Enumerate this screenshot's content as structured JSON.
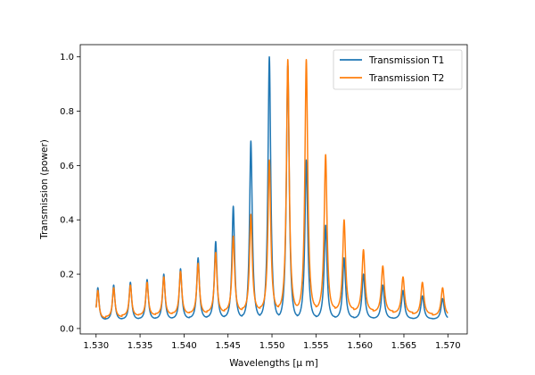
{
  "chart_data": {
    "type": "line",
    "title": "",
    "xlabel": "Wavelengths [$\\mu$ m]",
    "xlabel_display": "Wavelengths [μ m]",
    "ylabel": "Transmission (power)",
    "xlim": [
      1.5282,
      1.5722
    ],
    "ylim": [
      -0.02,
      1.045
    ],
    "xticks": [
      1.53,
      1.535,
      1.54,
      1.545,
      1.55,
      1.555,
      1.56,
      1.565,
      1.57
    ],
    "xtick_labels": [
      "1.530",
      "1.535",
      "1.540",
      "1.545",
      "1.550",
      "1.555",
      "1.560",
      "1.565",
      "1.570"
    ],
    "yticks": [
      0.0,
      0.2,
      0.4,
      0.6,
      0.8,
      1.0
    ],
    "ytick_labels": [
      "0.0",
      "0.2",
      "0.4",
      "0.6",
      "0.8",
      "1.0"
    ],
    "grid": false,
    "legend_position": "top-right",
    "x_range": [
      1.53,
      1.57
    ],
    "series": [
      {
        "name": "Transmission T1",
        "color": "#1f77b4",
        "peak_wavelengths": [
          1.5302,
          1.532,
          1.5339,
          1.5358,
          1.5377,
          1.5396,
          1.5416,
          1.5436,
          1.5456,
          1.5476,
          1.5497,
          1.5518,
          1.5539,
          1.5561,
          1.5582,
          1.5604,
          1.5626,
          1.5649,
          1.5671,
          1.5694
        ],
        "peak_values": [
          0.15,
          0.16,
          0.17,
          0.18,
          0.2,
          0.22,
          0.26,
          0.32,
          0.45,
          0.69,
          1.0,
          0.97,
          0.62,
          0.38,
          0.26,
          0.2,
          0.16,
          0.14,
          0.12,
          0.11
        ],
        "trough_values": [
          0.035,
          0.036,
          0.037,
          0.038,
          0.039,
          0.04,
          0.042,
          0.044,
          0.046,
          0.049,
          0.052,
          0.05,
          0.047,
          0.044,
          0.042,
          0.04,
          0.039,
          0.038,
          0.037,
          0.036
        ]
      },
      {
        "name": "Transmission T2",
        "color": "#ff7f0e",
        "peak_wavelengths": [
          1.5302,
          1.532,
          1.5339,
          1.5358,
          1.5377,
          1.5396,
          1.5416,
          1.5436,
          1.5456,
          1.5476,
          1.5497,
          1.5518,
          1.5539,
          1.5561,
          1.5582,
          1.5604,
          1.5626,
          1.5649,
          1.5671,
          1.5694
        ],
        "peak_values": [
          0.14,
          0.15,
          0.16,
          0.17,
          0.19,
          0.21,
          0.24,
          0.28,
          0.34,
          0.42,
          0.62,
          0.99,
          0.99,
          0.64,
          0.4,
          0.29,
          0.23,
          0.19,
          0.17,
          0.15
        ],
        "trough_values": [
          0.04,
          0.045,
          0.05,
          0.052,
          0.055,
          0.058,
          0.06,
          0.065,
          0.07,
          0.075,
          0.08,
          0.085,
          0.085,
          0.08,
          0.075,
          0.07,
          0.065,
          0.06,
          0.055,
          0.05
        ]
      }
    ]
  }
}
